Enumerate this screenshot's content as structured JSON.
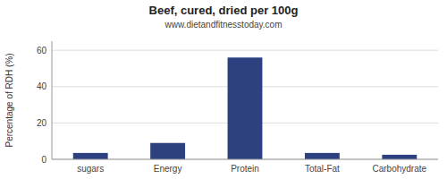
{
  "chart_data": {
    "type": "bar",
    "title": "Beef, cured, dried per 100g",
    "subtitle": "www.dietandfitnesstoday.com",
    "categories": [
      "sugars",
      "Energy",
      "Protein",
      "Total-Fat",
      "Carbohydrate"
    ],
    "values": [
      3.5,
      9,
      56,
      3.5,
      2.5
    ],
    "color": "#2d4080",
    "ylabel": "Percentage of RDH (%)",
    "ylim": [
      0,
      65
    ],
    "yticks": [
      0,
      20,
      40,
      60
    ],
    "grid": true
  }
}
